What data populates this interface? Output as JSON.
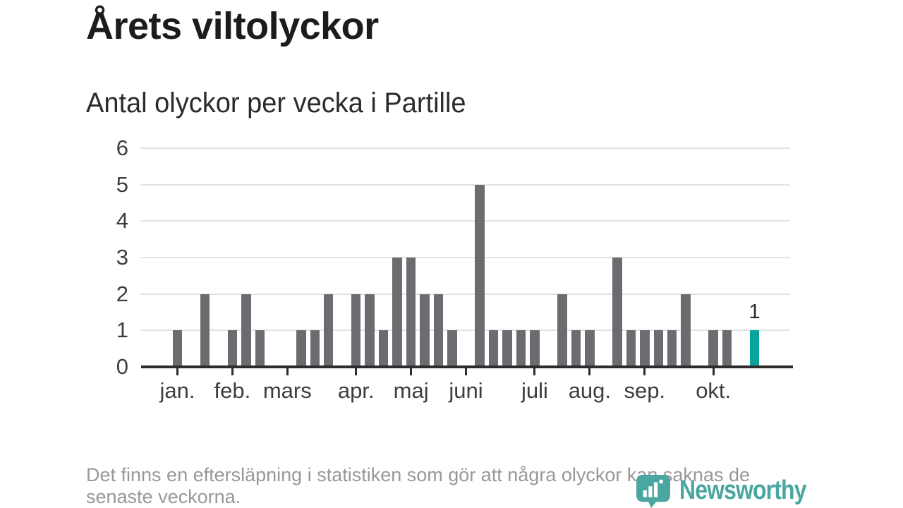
{
  "header": {
    "title": "Årets viltolyckor",
    "subtitle": "Antal olyckor per vecka i Partille"
  },
  "chart_data": {
    "type": "bar",
    "title": "Årets viltolyckor",
    "subtitle": "Antal olyckor per vecka i Partille",
    "x_unit": "vecka",
    "values_per_week": [
      0,
      0,
      1,
      0,
      2,
      0,
      1,
      2,
      1,
      0,
      0,
      1,
      1,
      2,
      0,
      2,
      2,
      1,
      3,
      3,
      2,
      2,
      1,
      0,
      5,
      1,
      1,
      1,
      1,
      0,
      2,
      1,
      1,
      0,
      3,
      1,
      1,
      1,
      1,
      2,
      0,
      1,
      1,
      0,
      1
    ],
    "highlight": {
      "week_index": 44,
      "value": 1,
      "label": "1"
    },
    "y_ticks": [
      0,
      1,
      2,
      3,
      4,
      5,
      6
    ],
    "ylim": [
      0,
      6
    ],
    "grid": "horizontal",
    "month_ticks": [
      {
        "week": 2,
        "label": "jan."
      },
      {
        "week": 6,
        "label": "feb."
      },
      {
        "week": 10,
        "label": "mars"
      },
      {
        "week": 15,
        "label": "apr."
      },
      {
        "week": 19,
        "label": "maj"
      },
      {
        "week": 23,
        "label": "juni"
      },
      {
        "week": 28,
        "label": "juli"
      },
      {
        "week": 32,
        "label": "aug."
      },
      {
        "week": 36,
        "label": "sep."
      },
      {
        "week": 41,
        "label": "okt."
      }
    ],
    "colors": {
      "bar": "#6e6b70",
      "highlight": "#0aa39c",
      "gridline": "#e2e2e2",
      "axis": "#2e2c2f",
      "tick_label": "#3d3d3d"
    }
  },
  "footnote": {
    "lines": [
      "Det finns en eftersläpning i statistiken som gör att några olyckor kan saknas de",
      "senaste veckorna."
    ]
  },
  "logo": {
    "text": "Newsworthy",
    "color": "#4aa6a0",
    "icon": "newsworthy-pin-barchart-icon"
  }
}
